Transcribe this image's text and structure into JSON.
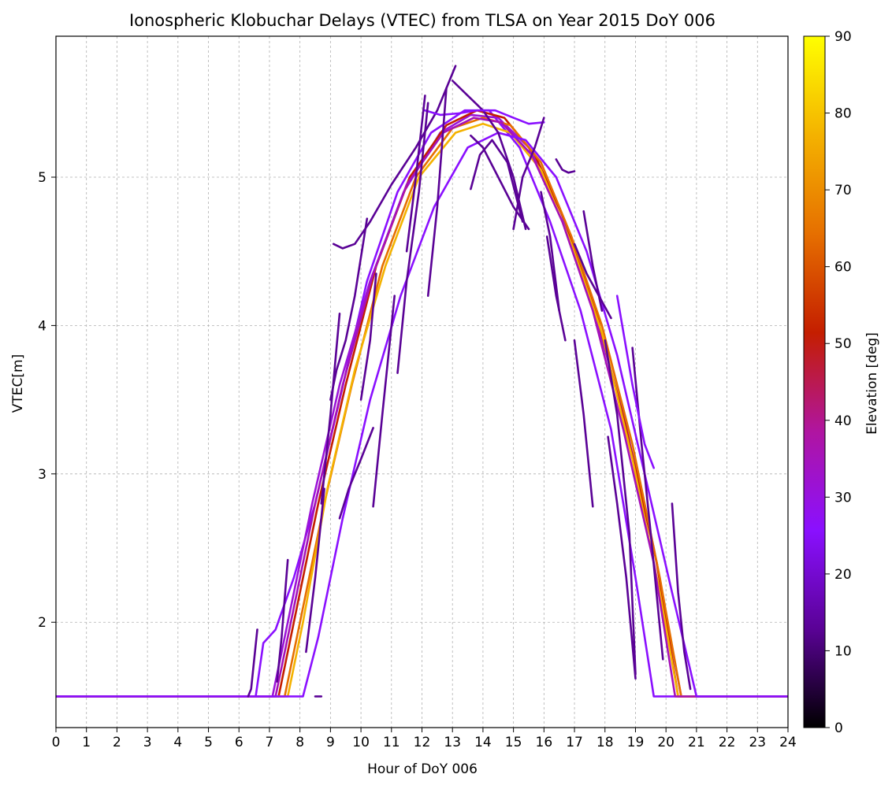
{
  "chart_data": {
    "type": "line",
    "title": "Ionospheric Klobuchar Delays (VTEC) from TLSA on Year 2015 DoY 006",
    "xlabel": "Hour of DoY 006",
    "ylabel": "VTEC[m]",
    "xlim": [
      0,
      24
    ],
    "ylim": [
      1.29,
      5.95
    ],
    "xticks": [
      0,
      1,
      2,
      3,
      4,
      5,
      6,
      7,
      8,
      9,
      10,
      11,
      12,
      13,
      14,
      15,
      16,
      17,
      18,
      19,
      20,
      21,
      22,
      23,
      24
    ],
    "yticks": [
      2,
      3,
      4,
      5
    ],
    "grid": true,
    "night_floor": 1.5,
    "colorbar": {
      "label": "Elevation [deg]",
      "range": [
        0,
        90
      ],
      "ticks": [
        0,
        10,
        20,
        30,
        40,
        50,
        60,
        70,
        80,
        90
      ],
      "colormap": [
        "#000000",
        "#5a0296",
        "#8a10ff",
        "#b015a0",
        "#c41e00",
        "#e66f00",
        "#f4b200",
        "#ffff00"
      ]
    },
    "series": [
      {
        "color": "#8a10ff",
        "x": [
          0,
          6.55,
          6.8,
          7.2,
          7.8,
          8.5,
          9.3,
          10.2,
          11.2,
          12.3,
          13.4,
          14.2,
          15.2,
          16.2,
          17.2,
          18.2,
          19.0,
          19.6,
          24
        ],
        "y": [
          1.5,
          1.5,
          1.86,
          1.95,
          2.3,
          2.8,
          3.5,
          4.3,
          4.9,
          5.3,
          5.45,
          5.45,
          5.2,
          4.7,
          4.1,
          3.3,
          2.3,
          1.5,
          1.5
        ]
      },
      {
        "color": "#9c14d8",
        "x": [
          0,
          7.1,
          7.6,
          8.4,
          9.3,
          10.3,
          11.4,
          12.6,
          13.6,
          14.5,
          15.5,
          16.5,
          17.5,
          18.6,
          19.6,
          20.5,
          24
        ],
        "y": [
          1.5,
          1.5,
          2.0,
          2.8,
          3.6,
          4.3,
          4.9,
          5.3,
          5.42,
          5.4,
          5.2,
          4.8,
          4.2,
          3.4,
          2.5,
          1.5,
          1.5
        ]
      },
      {
        "color": "#c41e00",
        "x": [
          0,
          7.3,
          7.8,
          8.6,
          9.5,
          10.5,
          11.6,
          12.8,
          13.8,
          14.7,
          15.7,
          16.7,
          17.7,
          18.7,
          19.7,
          20.4,
          24
        ],
        "y": [
          1.5,
          1.5,
          2.0,
          2.8,
          3.6,
          4.4,
          5.0,
          5.35,
          5.45,
          5.4,
          5.15,
          4.7,
          4.1,
          3.3,
          2.4,
          1.5,
          1.5
        ]
      },
      {
        "color": "#e66f00",
        "x": [
          0,
          7.5,
          8.0,
          8.8,
          9.7,
          10.7,
          11.8,
          13.0,
          14.0,
          14.9,
          15.9,
          16.9,
          17.9,
          18.9,
          19.8,
          20.5,
          24
        ],
        "y": [
          1.5,
          1.5,
          2.0,
          2.8,
          3.6,
          4.4,
          5.0,
          5.33,
          5.4,
          5.35,
          5.1,
          4.6,
          4.0,
          3.2,
          2.3,
          1.5,
          1.5
        ]
      },
      {
        "color": "#f4b200",
        "x": [
          0,
          7.6,
          8.1,
          8.9,
          9.8,
          10.8,
          11.9,
          13.1,
          14.0,
          14.9,
          15.9,
          16.9,
          17.9,
          18.9,
          19.8,
          20.4,
          24
        ],
        "y": [
          1.5,
          1.5,
          2.0,
          2.9,
          3.7,
          4.4,
          5.0,
          5.3,
          5.36,
          5.3,
          5.05,
          4.55,
          3.95,
          3.1,
          2.2,
          1.5,
          1.5
        ]
      },
      {
        "color": "#a512b8",
        "x": [
          0,
          7.2,
          7.7,
          8.5,
          9.4,
          10.4,
          11.5,
          12.7,
          13.7,
          14.6,
          15.6,
          16.6,
          17.6,
          18.6,
          19.6,
          20.3,
          24
        ],
        "y": [
          1.5,
          1.5,
          2.0,
          2.8,
          3.6,
          4.35,
          4.95,
          5.3,
          5.4,
          5.37,
          5.15,
          4.7,
          4.1,
          3.3,
          2.4,
          1.5,
          1.5
        ]
      },
      {
        "color": "#8a10ff",
        "x": [
          0,
          8.1,
          8.6,
          9.4,
          10.3,
          11.3,
          12.4,
          13.5,
          14.5,
          15.4,
          16.4,
          17.4,
          18.4,
          19.3,
          20.2,
          21.0,
          24
        ],
        "y": [
          1.5,
          1.5,
          1.9,
          2.7,
          3.5,
          4.2,
          4.8,
          5.2,
          5.3,
          5.25,
          5.0,
          4.5,
          3.8,
          3.0,
          2.2,
          1.5,
          1.5
        ]
      },
      {
        "color": "#5a0296",
        "x": [
          9.1,
          9.4,
          9.8,
          10.3,
          11.0,
          11.8,
          12.5,
          13.1
        ],
        "y": [
          4.55,
          4.52,
          4.55,
          4.7,
          4.95,
          5.2,
          5.45,
          5.75
        ]
      },
      {
        "color": "#5a0296",
        "x": [
          13.0,
          13.5,
          14.0,
          14.5,
          15.0,
          15.4
        ],
        "y": [
          5.65,
          5.55,
          5.45,
          5.3,
          5.0,
          4.65
        ]
      },
      {
        "color": "#8a10ff",
        "x": [
          12.1,
          12.6,
          13.2,
          13.8,
          14.4,
          15.0,
          15.5,
          16.0
        ],
        "y": [
          5.45,
          5.42,
          5.43,
          5.45,
          5.45,
          5.4,
          5.36,
          5.37
        ]
      },
      {
        "color": "#5a0296",
        "x": [
          13.6,
          13.9,
          14.3,
          14.8,
          15.3
        ],
        "y": [
          4.92,
          5.15,
          5.25,
          5.1,
          4.7
        ]
      },
      {
        "color": "#5a0296",
        "x": [
          13.6,
          14.0,
          14.5,
          15.0,
          15.5
        ],
        "y": [
          5.28,
          5.2,
          5.0,
          4.8,
          4.65
        ]
      },
      {
        "color": "#5a0296",
        "x": [
          16.4,
          16.6,
          16.8,
          17.0
        ],
        "y": [
          5.12,
          5.05,
          5.03,
          5.04
        ]
      },
      {
        "color": "#5a0296",
        "x": [
          17.0,
          17.4,
          17.8,
          18.2
        ],
        "y": [
          4.55,
          4.35,
          4.2,
          4.05
        ]
      },
      {
        "color": "#5a0296",
        "x": [
          17.3,
          17.6,
          17.9
        ],
        "y": [
          4.77,
          4.4,
          4.1
        ]
      },
      {
        "color": "#5a0296",
        "x": [
          12.2,
          12.5,
          12.8
        ],
        "y": [
          4.2,
          4.8,
          5.6
        ]
      },
      {
        "color": "#5a0296",
        "x": [
          11.2,
          11.5,
          11.9,
          12.2
        ],
        "y": [
          3.68,
          4.3,
          4.9,
          5.5
        ]
      },
      {
        "color": "#5a0296",
        "x": [
          9.0,
          9.2,
          9.5,
          9.8,
          10.2
        ],
        "y": [
          3.5,
          3.7,
          3.9,
          4.2,
          4.72
        ]
      },
      {
        "color": "#5a0296",
        "x": [
          8.7,
          9.0,
          9.3
        ],
        "y": [
          2.8,
          3.4,
          4.08
        ]
      },
      {
        "color": "#5a0296",
        "x": [
          9.3,
          9.6,
          10.0,
          10.4
        ],
        "y": [
          2.7,
          2.9,
          3.1,
          3.31
        ]
      },
      {
        "color": "#5a0296",
        "x": [
          10.0,
          10.3,
          10.5
        ],
        "y": [
          3.5,
          3.9,
          4.35
        ]
      },
      {
        "color": "#5a0296",
        "x": [
          10.4,
          10.7,
          11.1
        ],
        "y": [
          2.78,
          3.4,
          4.2
        ]
      },
      {
        "color": "#5a0296",
        "x": [
          11.5,
          11.8,
          12.1
        ],
        "y": [
          4.5,
          5.0,
          5.55
        ]
      },
      {
        "color": "#5a0296",
        "x": [
          8.2,
          8.5,
          8.8
        ],
        "y": [
          1.8,
          2.3,
          2.9
        ]
      },
      {
        "color": "#5a0296",
        "x": [
          6.3,
          6.4,
          6.5,
          6.6
        ],
        "y": [
          1.5,
          1.55,
          1.75,
          1.95
        ]
      },
      {
        "color": "#5a0296",
        "x": [
          7.25,
          7.4,
          7.6
        ],
        "y": [
          1.6,
          1.9,
          2.42
        ]
      },
      {
        "color": "#5a0296",
        "x": [
          8.5,
          8.7
        ],
        "y": [
          1.5,
          1.5
        ]
      },
      {
        "color": "#5a0296",
        "x": [
          15.0,
          15.3,
          15.7,
          16.0
        ],
        "y": [
          4.65,
          5.0,
          5.2,
          5.4
        ]
      },
      {
        "color": "#5a0296",
        "x": [
          15.9,
          16.2,
          16.5
        ],
        "y": [
          4.9,
          4.6,
          4.1
        ]
      },
      {
        "color": "#5a0296",
        "x": [
          16.1,
          16.4,
          16.7
        ],
        "y": [
          4.6,
          4.2,
          3.9
        ]
      },
      {
        "color": "#5a0296",
        "x": [
          17.0,
          17.3,
          17.6
        ],
        "y": [
          3.9,
          3.4,
          2.78
        ]
      },
      {
        "color": "#5a0296",
        "x": [
          18.0,
          18.4,
          18.8,
          19.0
        ],
        "y": [
          3.9,
          3.4,
          2.6,
          1.65
        ]
      },
      {
        "color": "#5a0296",
        "x": [
          18.1,
          18.4,
          18.7,
          19.0
        ],
        "y": [
          3.25,
          2.8,
          2.3,
          1.62
        ]
      },
      {
        "color": "#5a0296",
        "x": [
          18.9,
          19.2,
          19.5,
          19.9
        ],
        "y": [
          3.85,
          3.2,
          2.6,
          1.75
        ]
      },
      {
        "color": "#8a10ff",
        "x": [
          18.4,
          18.9,
          19.3,
          19.6
        ],
        "y": [
          4.2,
          3.6,
          3.2,
          3.04
        ]
      },
      {
        "color": "#5a0296",
        "x": [
          20.2,
          20.4,
          20.6,
          20.8
        ],
        "y": [
          2.8,
          2.2,
          1.8,
          1.55
        ]
      }
    ]
  }
}
